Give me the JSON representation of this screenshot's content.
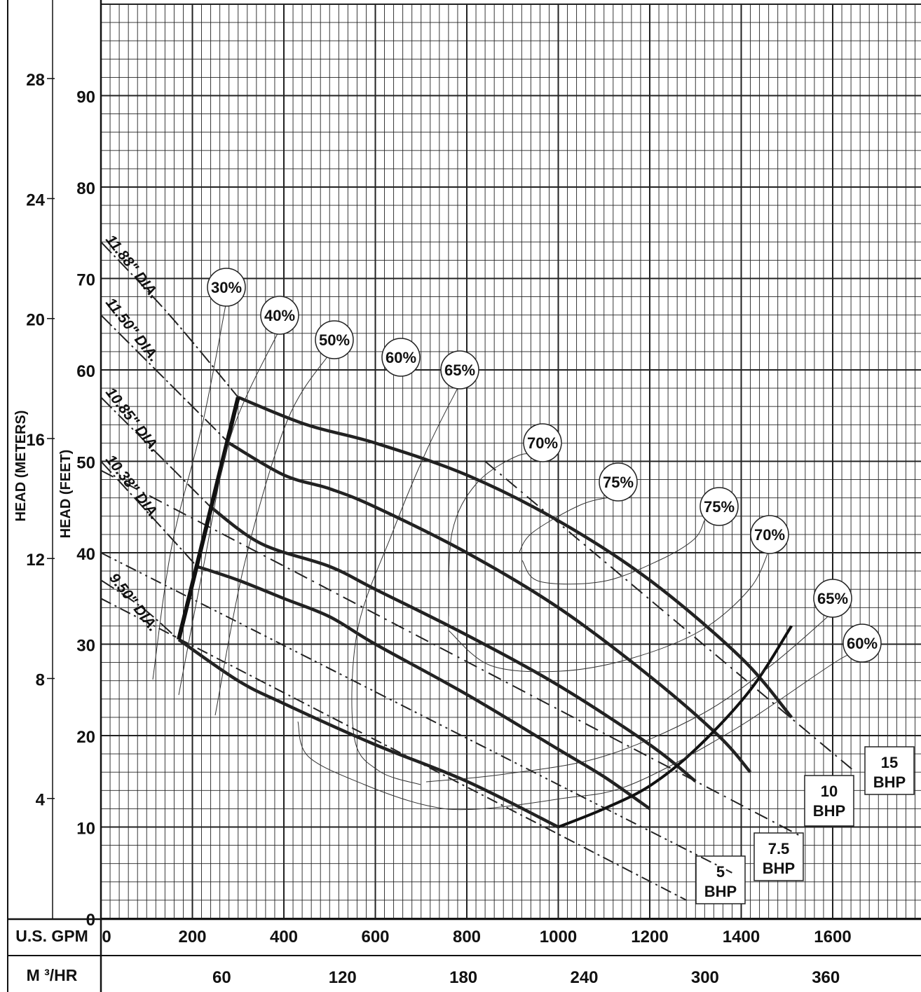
{
  "chart_data": {
    "type": "line",
    "title": "",
    "ylabel_feet": "HEAD (FEET)",
    "ylabel_meters": "HEAD (METERS)",
    "xlabel_gpm": "U.S. GPM",
    "xlabel_m3hr": "M ³/HR",
    "xlim_gpm": [
      0,
      1800
    ],
    "ylim_feet": [
      0,
      100
    ],
    "grid": true,
    "feet_ticks": [
      "0",
      "10",
      "20",
      "30",
      "40",
      "50",
      "60",
      "70",
      "80",
      "90"
    ],
    "meter_ticks": [
      "4",
      "8",
      "12",
      "16",
      "20",
      "24",
      "28"
    ],
    "gpm_ticks": [
      "0",
      "200",
      "400",
      "600",
      "800",
      "1000",
      "1200",
      "1400",
      "1600"
    ],
    "m3hr_ticks": [
      "60",
      "120",
      "180",
      "240",
      "300",
      "360"
    ],
    "diameter_curves": [
      {
        "name": "11.88\" DIA.",
        "label": "11.88\" DIA.",
        "x": [
          300,
          450,
          600,
          800,
          1000,
          1200,
          1400,
          1510
        ],
        "y": [
          57,
          54,
          52,
          48.5,
          43.5,
          37,
          28.5,
          22
        ]
      },
      {
        "name": "11.50\" DIA.",
        "label": "11.50\" DIA.",
        "x": [
          280,
          400,
          500,
          600,
          800,
          1000,
          1200,
          1350,
          1420
        ],
        "y": [
          52,
          48.5,
          47,
          45,
          40,
          34,
          26.5,
          20,
          16
        ]
      },
      {
        "name": "10.85\" DIA.",
        "label": "10.85\" DIA.",
        "x": [
          240,
          350,
          500,
          600,
          800,
          1000,
          1200,
          1300
        ],
        "y": [
          45,
          41,
          38.5,
          36,
          31,
          25.5,
          19,
          15
        ]
      },
      {
        "name": "10.38\" DIA.",
        "label": "10.38\" DIA.",
        "x": [
          210,
          300,
          400,
          500,
          600,
          800,
          1000,
          1100,
          1200
        ],
        "y": [
          38.5,
          37,
          35,
          33,
          30,
          24.5,
          18.5,
          15.5,
          12
        ]
      },
      {
        "name": "9.50\" DIA.",
        "label": "9.50\" DIA.",
        "x": [
          170,
          300,
          400,
          600,
          800,
          1000
        ],
        "y": [
          30.5,
          26,
          23.5,
          19,
          15,
          10
        ]
      }
    ],
    "efficiency_labels": [
      "30%",
      "40%",
      "50%",
      "60%",
      "65%",
      "70%",
      "75%",
      "75%",
      "70%",
      "65%",
      "60%"
    ],
    "bhp_lines": [
      {
        "label1": "5",
        "label2": "BHP",
        "x": [
          0,
          1280
        ],
        "y": [
          35,
          2
        ]
      },
      {
        "label1": "7.5",
        "label2": "BHP",
        "x": [
          0,
          1380
        ],
        "y": [
          40,
          5
        ]
      },
      {
        "label1": "10",
        "label2": "BHP",
        "x": [
          0,
          1530
        ],
        "y": [
          49,
          9
        ]
      },
      {
        "label1": "15",
        "label2": "BHP",
        "x": [
          840,
          1650
        ],
        "y": [
          50,
          16
        ]
      }
    ]
  }
}
